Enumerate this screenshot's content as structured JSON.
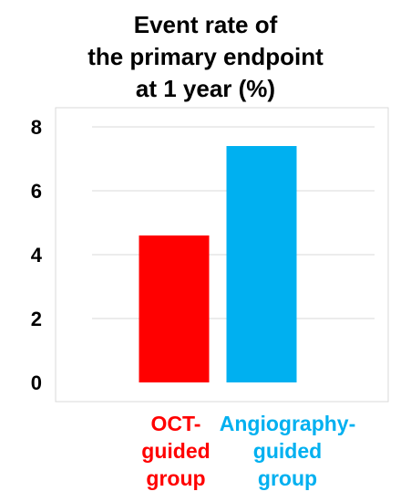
{
  "chart_data": {
    "type": "bar",
    "title_lines": [
      "Event rate of",
      "the primary endpoint",
      "at 1 year (%)"
    ],
    "categories": [
      {
        "lines": [
          "OCT-",
          "guided",
          "group"
        ],
        "color": "#FF0000"
      },
      {
        "lines": [
          "Angiography-",
          "guided",
          "group"
        ],
        "color": "#00B0F0"
      }
    ],
    "values": [
      4.6,
      7.4
    ],
    "ylim": [
      0,
      8
    ],
    "yticks": [
      "0",
      "2",
      "4",
      "6",
      "8"
    ],
    "grid": true
  }
}
